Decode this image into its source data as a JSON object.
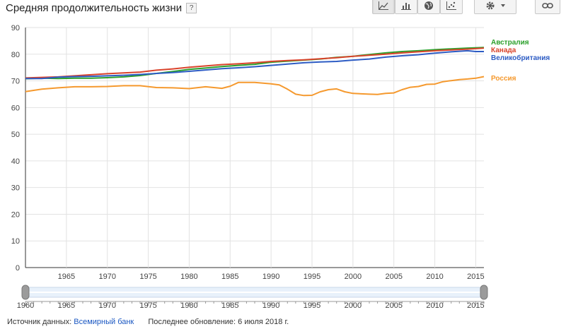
{
  "header": {
    "title": "Средняя продолжительность жизни",
    "help_label": "?"
  },
  "toolbar": {
    "buttons": [
      {
        "icon": "line-chart-icon",
        "active": true
      },
      {
        "icon": "bar-chart-icon",
        "active": false
      },
      {
        "icon": "globe-icon",
        "active": false
      },
      {
        "icon": "scatter-icon",
        "active": false
      },
      {
        "icon": "gear-icon",
        "active": false
      },
      {
        "icon": "link-icon",
        "active": false
      }
    ]
  },
  "footer": {
    "source_prefix": "Источник данных:",
    "source_link": "Всемирный банк",
    "updated": "Последнее обновление: 6 июля 2018 г."
  },
  "chart_data": {
    "type": "line",
    "title": "Средняя продолжительность жизни",
    "xlabel": "",
    "ylabel": "",
    "xlim": [
      1960,
      2016
    ],
    "ylim": [
      0,
      90
    ],
    "y_ticks": [
      0,
      10,
      20,
      30,
      40,
      50,
      60,
      70,
      80,
      90
    ],
    "x_ticks": [
      1965,
      1970,
      1975,
      1980,
      1985,
      1990,
      1995,
      2000,
      2005,
      2010,
      2015
    ],
    "range_ticks": [
      "1960",
      "1965",
      "1970",
      "1975",
      "1980",
      "1985",
      "1990",
      "1995",
      "2000",
      "2005",
      "2010",
      "2015"
    ],
    "grid": true,
    "legend_position": "right",
    "series": [
      {
        "name": "Австралия",
        "color": "#2ca02c",
        "points": [
          [
            1960,
            70.8
          ],
          [
            1962,
            71.0
          ],
          [
            1964,
            70.9
          ],
          [
            1966,
            71.0
          ],
          [
            1968,
            71.0
          ],
          [
            1970,
            71.2
          ],
          [
            1972,
            71.5
          ],
          [
            1974,
            72.0
          ],
          [
            1976,
            72.8
          ],
          [
            1978,
            73.5
          ],
          [
            1980,
            74.3
          ],
          [
            1982,
            74.8
          ],
          [
            1984,
            75.4
          ],
          [
            1986,
            75.8
          ],
          [
            1988,
            76.2
          ],
          [
            1990,
            77.0
          ],
          [
            1992,
            77.4
          ],
          [
            1994,
            77.8
          ],
          [
            1996,
            78.2
          ],
          [
            1998,
            78.8
          ],
          [
            2000,
            79.2
          ],
          [
            2002,
            79.9
          ],
          [
            2004,
            80.5
          ],
          [
            2006,
            81.0
          ],
          [
            2008,
            81.3
          ],
          [
            2010,
            81.7
          ],
          [
            2012,
            82.0
          ],
          [
            2014,
            82.3
          ],
          [
            2016,
            82.5
          ]
        ]
      },
      {
        "name": "Канада",
        "color": "#d9432b",
        "points": [
          [
            1960,
            71.1
          ],
          [
            1962,
            71.3
          ],
          [
            1964,
            71.5
          ],
          [
            1966,
            71.9
          ],
          [
            1968,
            72.3
          ],
          [
            1970,
            72.7
          ],
          [
            1972,
            73.0
          ],
          [
            1974,
            73.3
          ],
          [
            1976,
            74.0
          ],
          [
            1978,
            74.5
          ],
          [
            1980,
            75.1
          ],
          [
            1982,
            75.6
          ],
          [
            1984,
            76.1
          ],
          [
            1986,
            76.4
          ],
          [
            1988,
            76.8
          ],
          [
            1990,
            77.3
          ],
          [
            1992,
            77.6
          ],
          [
            1994,
            77.9
          ],
          [
            1996,
            78.3
          ],
          [
            1998,
            78.7
          ],
          [
            2000,
            79.2
          ],
          [
            2002,
            79.6
          ],
          [
            2004,
            80.0
          ],
          [
            2006,
            80.5
          ],
          [
            2008,
            80.9
          ],
          [
            2010,
            81.3
          ],
          [
            2012,
            81.6
          ],
          [
            2014,
            81.9
          ],
          [
            2016,
            82.3
          ]
        ]
      },
      {
        "name": "Великобритания",
        "color": "#2d5cc4",
        "points": [
          [
            1960,
            70.9
          ],
          [
            1962,
            70.9
          ],
          [
            1964,
            71.4
          ],
          [
            1966,
            71.6
          ],
          [
            1968,
            71.7
          ],
          [
            1970,
            71.9
          ],
          [
            1972,
            72.1
          ],
          [
            1974,
            72.4
          ],
          [
            1976,
            72.8
          ],
          [
            1978,
            73.1
          ],
          [
            1980,
            73.6
          ],
          [
            1982,
            74.1
          ],
          [
            1984,
            74.6
          ],
          [
            1986,
            74.9
          ],
          [
            1988,
            75.3
          ],
          [
            1990,
            75.8
          ],
          [
            1992,
            76.3
          ],
          [
            1994,
            76.8
          ],
          [
            1996,
            77.1
          ],
          [
            1998,
            77.3
          ],
          [
            2000,
            77.8
          ],
          [
            2002,
            78.2
          ],
          [
            2004,
            78.9
          ],
          [
            2006,
            79.4
          ],
          [
            2008,
            79.8
          ],
          [
            2010,
            80.4
          ],
          [
            2012,
            80.9
          ],
          [
            2014,
            81.3
          ],
          [
            2015,
            81.0
          ],
          [
            2016,
            81.0
          ]
        ]
      },
      {
        "name": "Россия",
        "color": "#f5992e",
        "points": [
          [
            1960,
            66.0
          ],
          [
            1962,
            66.9
          ],
          [
            1964,
            67.4
          ],
          [
            1966,
            67.8
          ],
          [
            1968,
            67.8
          ],
          [
            1970,
            67.9
          ],
          [
            1972,
            68.2
          ],
          [
            1974,
            68.2
          ],
          [
            1976,
            67.5
          ],
          [
            1978,
            67.4
          ],
          [
            1980,
            67.1
          ],
          [
            1982,
            67.8
          ],
          [
            1984,
            67.2
          ],
          [
            1985,
            68.0
          ],
          [
            1986,
            69.4
          ],
          [
            1988,
            69.4
          ],
          [
            1990,
            68.9
          ],
          [
            1991,
            68.5
          ],
          [
            1992,
            66.9
          ],
          [
            1993,
            65.0
          ],
          [
            1994,
            64.5
          ],
          [
            1995,
            64.6
          ],
          [
            1996,
            65.9
          ],
          [
            1997,
            66.7
          ],
          [
            1998,
            67.0
          ],
          [
            1999,
            65.9
          ],
          [
            2000,
            65.3
          ],
          [
            2002,
            65.0
          ],
          [
            2003,
            64.9
          ],
          [
            2004,
            65.3
          ],
          [
            2005,
            65.5
          ],
          [
            2006,
            66.7
          ],
          [
            2007,
            67.6
          ],
          [
            2008,
            67.9
          ],
          [
            2009,
            68.7
          ],
          [
            2010,
            68.8
          ],
          [
            2011,
            69.7
          ],
          [
            2012,
            70.1
          ],
          [
            2013,
            70.5
          ],
          [
            2014,
            70.7
          ],
          [
            2015,
            71.0
          ],
          [
            2016,
            71.6
          ]
        ]
      }
    ]
  }
}
